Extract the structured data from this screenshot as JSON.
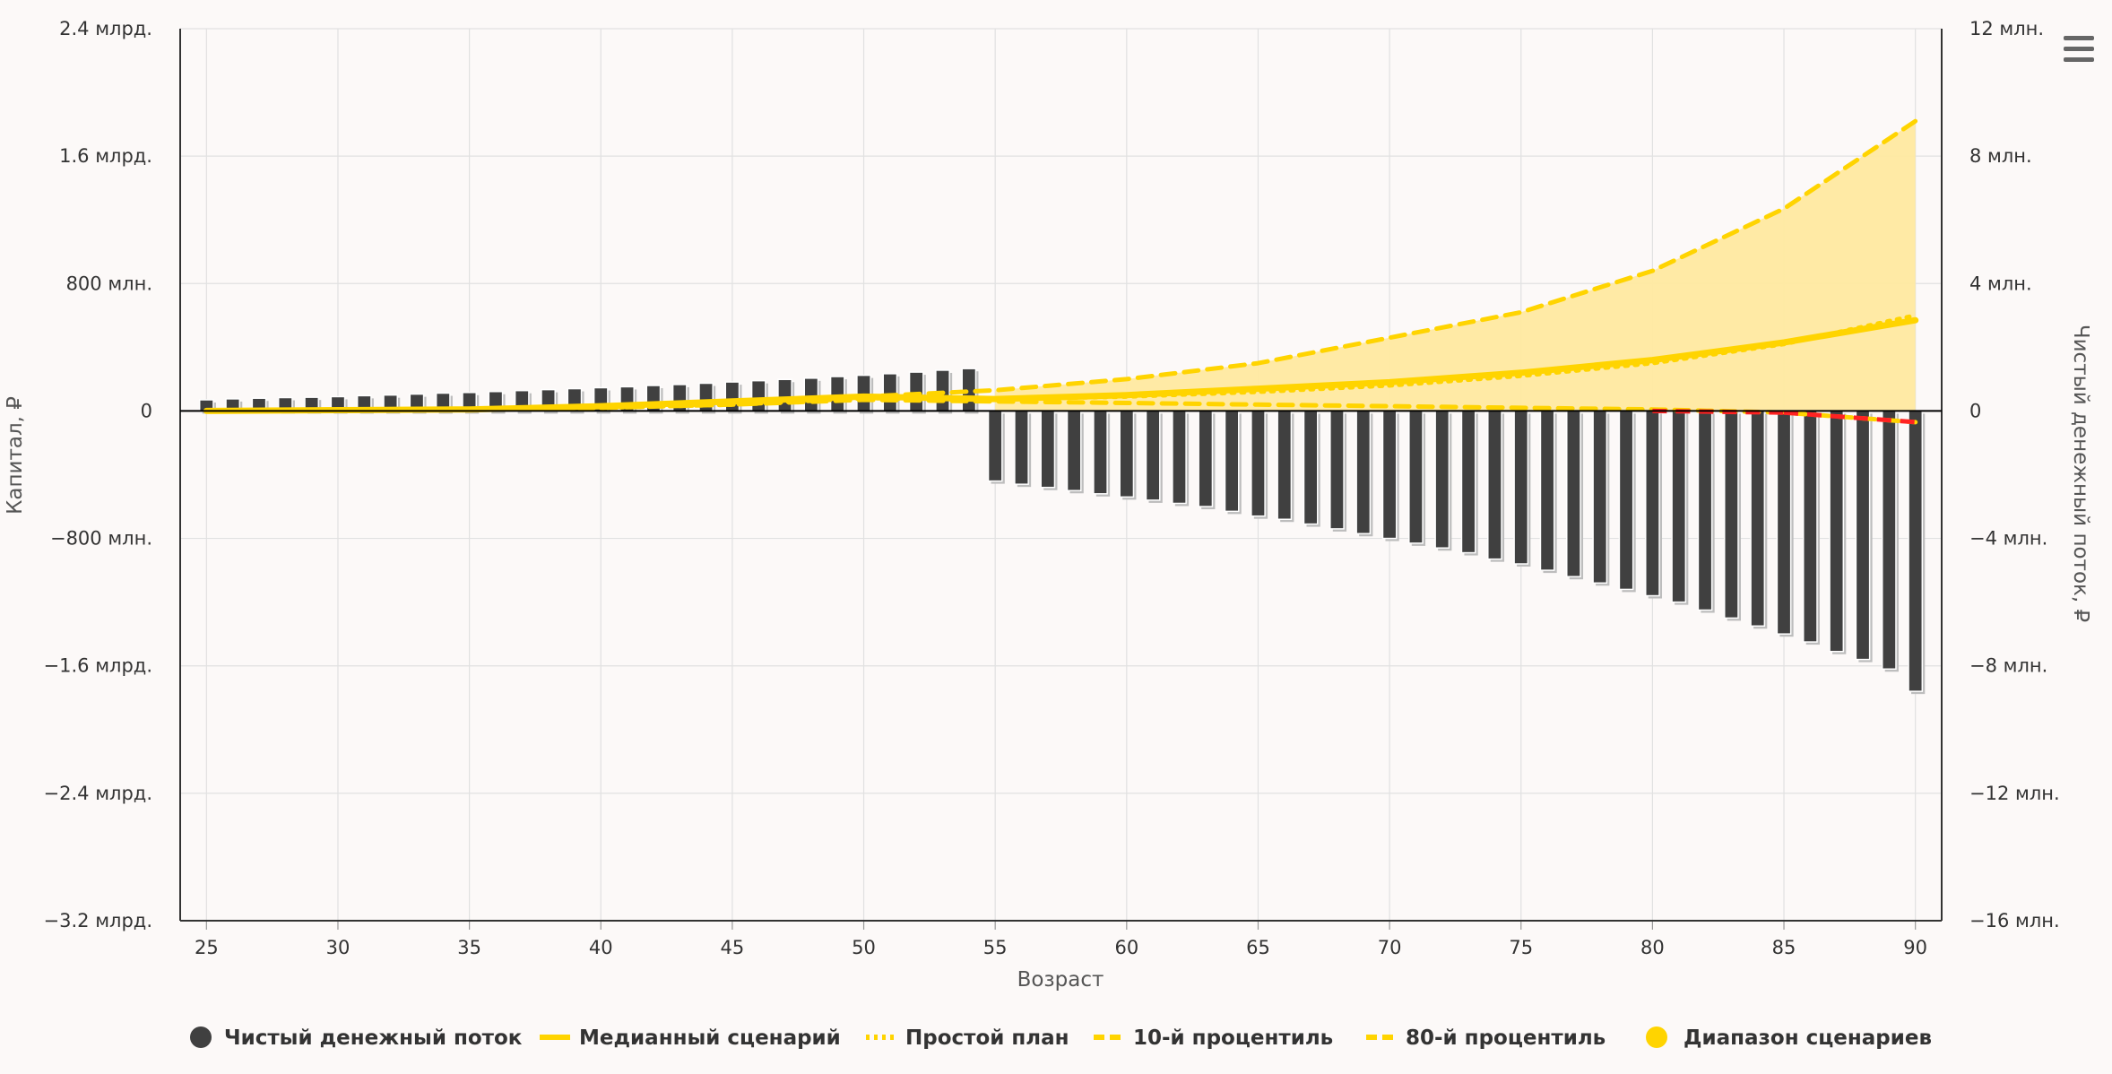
{
  "chart_data": {
    "type": "bar",
    "title": "",
    "xlabel": "Возраст",
    "ylabel_left": "Капитал, ₽",
    "ylabel_right": "Чистый денежный поток, ₽",
    "x_ticks": [
      25,
      30,
      35,
      40,
      45,
      50,
      55,
      60,
      65,
      70,
      75,
      80,
      85,
      90
    ],
    "x_range": [
      24,
      91
    ],
    "left_axis": {
      "range": [
        -3200000000,
        2400000000
      ],
      "ticks": [
        2400000000,
        1600000000,
        800000000,
        0,
        -800000000,
        -1600000000,
        -2400000000,
        -3200000000
      ],
      "tick_labels": [
        "2.4 млрд.",
        "1.6 млрд.",
        "800 млн.",
        "0",
        "−800 млн.",
        "−1.6 млрд.",
        "−2.4 млрд.",
        "−3.2 млрд."
      ]
    },
    "right_axis": {
      "range": [
        -16000000,
        12000000
      ],
      "ticks": [
        12000000,
        8000000,
        4000000,
        0,
        -4000000,
        -8000000,
        -12000000,
        -16000000
      ],
      "tick_labels": [
        "12 млн.",
        "8 млн.",
        "4 млн.",
        "0",
        "−4 млн.",
        "−8 млн.",
        "−12 млн.",
        "−16 млн."
      ]
    },
    "grid": true,
    "legend_position": "bottom",
    "colors": {
      "bars": "#404040",
      "median": "#ffd400",
      "simple_plan": "#ffd400",
      "p10": "#ffd400",
      "p80": "#ffd400",
      "range": "#ffe9a0",
      "negative_capital": "#ff2222",
      "menu_icon": "#666666"
    },
    "legend": [
      {
        "label": "Чистый денежный поток",
        "symbol": "circle"
      },
      {
        "label": "Медианный сценарий",
        "symbol": "solid"
      },
      {
        "label": "Простой план",
        "symbol": "dotted"
      },
      {
        "label": "10-й процентиль",
        "symbol": "dashed"
      },
      {
        "label": "80-й процентиль",
        "symbol": "dashed"
      },
      {
        "label": "Диапазон сценариев",
        "symbol": "circle-yellow"
      }
    ],
    "series": [
      {
        "name": "Чистый денежный поток",
        "kind": "column",
        "axis": "right",
        "x": [
          25,
          26,
          27,
          28,
          29,
          30,
          31,
          32,
          33,
          34,
          35,
          36,
          37,
          38,
          39,
          40,
          41,
          42,
          43,
          44,
          45,
          46,
          47,
          48,
          49,
          50,
          51,
          52,
          53,
          54,
          55,
          56,
          57,
          58,
          59,
          60,
          61,
          62,
          63,
          64,
          65,
          66,
          67,
          68,
          69,
          70,
          71,
          72,
          73,
          74,
          75,
          76,
          77,
          78,
          79,
          80,
          81,
          82,
          83,
          84,
          85,
          86,
          87,
          88,
          89,
          90
        ],
        "values": [
          350000,
          380000,
          400000,
          420000,
          430000,
          450000,
          480000,
          500000,
          530000,
          560000,
          580000,
          610000,
          640000,
          670000,
          700000,
          730000,
          760000,
          800000,
          830000,
          870000,
          910000,
          950000,
          990000,
          1030000,
          1080000,
          1120000,
          1170000,
          1220000,
          1280000,
          1330000,
          -2200000,
          -2300000,
          -2400000,
          -2500000,
          -2600000,
          -2700000,
          -2800000,
          -2900000,
          -3000000,
          -3150000,
          -3300000,
          -3400000,
          -3550000,
          -3700000,
          -3850000,
          -4000000,
          -4150000,
          -4300000,
          -4450000,
          -4650000,
          -4800000,
          -5000000,
          -5200000,
          -5400000,
          -5600000,
          -5800000,
          -6000000,
          -6250000,
          -6500000,
          -6750000,
          -7000000,
          -7250000,
          -7550000,
          -7800000,
          -8100000,
          -8800000
        ]
      },
      {
        "name": "Медианный сценарий",
        "kind": "line",
        "axis": "left",
        "x": [
          25,
          30,
          35,
          40,
          45,
          50,
          55,
          60,
          65,
          70,
          75,
          80,
          85,
          90
        ],
        "values": [
          0,
          5000000,
          10000000,
          30000000,
          60000000,
          90000000,
          75000000,
          100000000,
          140000000,
          180000000,
          240000000,
          320000000,
          430000000,
          570000000
        ]
      },
      {
        "name": "Простой план",
        "kind": "line",
        "axis": "left",
        "x": [
          25,
          30,
          35,
          40,
          45,
          50,
          55,
          60,
          65,
          70,
          75,
          80,
          85,
          90
        ],
        "values": [
          0,
          5000000,
          10000000,
          20000000,
          40000000,
          80000000,
          75000000,
          90000000,
          120000000,
          160000000,
          220000000,
          300000000,
          420000000,
          600000000
        ]
      },
      {
        "name": "10-й процентиль",
        "kind": "line",
        "axis": "left",
        "x": [
          25,
          30,
          35,
          40,
          45,
          50,
          55,
          60,
          65,
          70,
          75,
          80,
          85,
          90
        ],
        "values": [
          0,
          5000000,
          10000000,
          20000000,
          40000000,
          70000000,
          60000000,
          50000000,
          40000000,
          30000000,
          20000000,
          10000000,
          -10000000,
          -70000000
        ]
      },
      {
        "name": "80-й процентиль",
        "kind": "line",
        "axis": "left",
        "x": [
          25,
          30,
          35,
          40,
          45,
          50,
          55,
          60,
          65,
          70,
          75,
          80,
          85,
          90
        ],
        "values": [
          0,
          5000000,
          10000000,
          25000000,
          50000000,
          90000000,
          130000000,
          200000000,
          300000000,
          460000000,
          620000000,
          880000000,
          1270000000,
          1820000000
        ]
      },
      {
        "name": "Диапазон сценариев",
        "kind": "area",
        "axis": "left",
        "x": [
          55,
          60,
          65,
          70,
          75,
          80,
          85,
          90
        ],
        "low": [
          0,
          0,
          0,
          0,
          0,
          0,
          0,
          0
        ],
        "high": [
          130000000,
          200000000,
          300000000,
          460000000,
          620000000,
          880000000,
          1270000000,
          1820000000
        ]
      }
    ]
  }
}
